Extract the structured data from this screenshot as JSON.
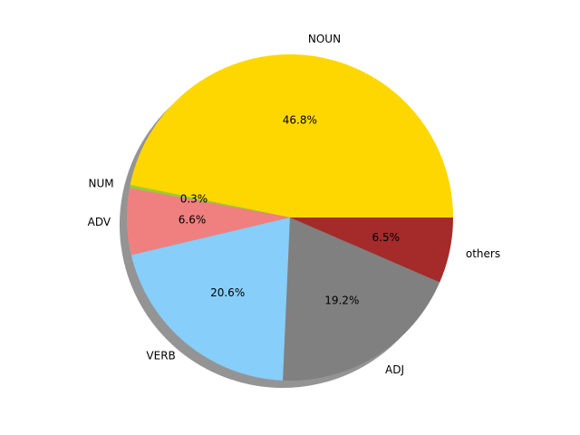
{
  "chart_data": {
    "type": "pie",
    "title": "",
    "start_angle_deg": 0,
    "direction": "counterclockwise",
    "shadow": true,
    "slices": [
      {
        "label": "NOUN",
        "value": 46.8,
        "pct_text": "46.8%",
        "color": "#FFD700"
      },
      {
        "label": "NUM",
        "value": 0.3,
        "pct_text": "0.3%",
        "color": "#9ACD32"
      },
      {
        "label": "ADV",
        "value": 6.6,
        "pct_text": "6.6%",
        "color": "#F08080"
      },
      {
        "label": "VERB",
        "value": 20.6,
        "pct_text": "20.6%",
        "color": "#87CEFA"
      },
      {
        "label": "ADJ",
        "value": 19.2,
        "pct_text": "19.2%",
        "color": "#808080"
      },
      {
        "label": "others",
        "value": 6.5,
        "pct_text": "6.5%",
        "color": "#A52A2A"
      }
    ]
  }
}
